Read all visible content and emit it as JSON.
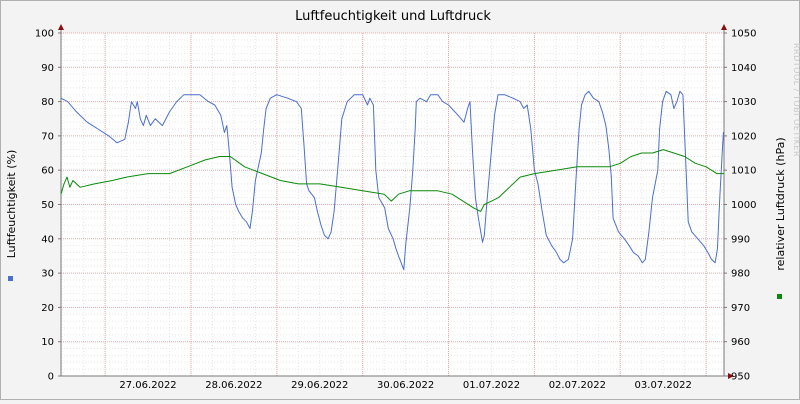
{
  "chart_data": {
    "type": "line",
    "title": "Luftfeuchtigkeit und Luftdruck",
    "watermark": "RRDTOOL / TOBI OETIKER",
    "x_start": "2022-06-26 11:40",
    "x_end": "2022-07-04 05:00",
    "x_tick_labels": [
      {
        "date": "2022-06-27 12:00",
        "label": "27.06.2022"
      },
      {
        "date": "2022-06-28 12:00",
        "label": "28.06.2022"
      },
      {
        "date": "2022-06-29 12:00",
        "label": "29.06.2022"
      },
      {
        "date": "2022-06-30 12:00",
        "label": "30.06.2022"
      },
      {
        "date": "2022-07-01 12:00",
        "label": "01.07.2022"
      },
      {
        "date": "2022-07-02 12:00",
        "label": "02.07.2022"
      },
      {
        "date": "2022-07-03 12:00",
        "label": "03.07.2022"
      }
    ],
    "x_major_gridlines": [
      "2022-06-27 00:00",
      "2022-06-28 00:00",
      "2022-06-29 00:00",
      "2022-06-30 00:00",
      "2022-07-01 00:00",
      "2022-07-02 00:00",
      "2022-07-03 00:00",
      "2022-07-04 00:00"
    ],
    "grid": true,
    "y_left": {
      "label": "Luftfeuchtigkeit (%)",
      "range": [
        0,
        100
      ],
      "ticks": [
        "0",
        "10",
        "20",
        "30",
        "40",
        "50",
        "60",
        "70",
        "80",
        "90",
        "100"
      ]
    },
    "y_right": {
      "label": "relativer Luftdruck (hPa)",
      "range": [
        950,
        1050
      ],
      "ticks": [
        "950",
        "960",
        "970",
        "980",
        "990",
        "1000",
        "1010",
        "1020",
        "1030",
        "1040",
        "1050"
      ]
    },
    "series": [
      {
        "axis": "left",
        "color": "#4a6fd0",
        "points": [
          [
            "2022-06-26 11:40",
            81
          ],
          [
            "2022-06-26 13:30",
            80
          ],
          [
            "2022-06-26 16:00",
            77
          ],
          [
            "2022-06-26 19:00",
            74
          ],
          [
            "2022-06-26 22:00",
            72
          ],
          [
            "2022-06-27 01:00",
            70
          ],
          [
            "2022-06-27 03:20",
            68
          ],
          [
            "2022-06-27 05:30",
            69
          ],
          [
            "2022-06-27 06:30",
            74
          ],
          [
            "2022-06-27 07:20",
            80
          ],
          [
            "2022-06-27 08:30",
            78
          ],
          [
            "2022-06-27 09:00",
            80
          ],
          [
            "2022-06-27 09:50",
            75
          ],
          [
            "2022-06-27 10:40",
            73
          ],
          [
            "2022-06-27 11:30",
            76
          ],
          [
            "2022-06-27 12:40",
            73
          ],
          [
            "2022-06-27 14:00",
            75
          ],
          [
            "2022-06-27 16:00",
            73
          ],
          [
            "2022-06-27 18:00",
            77
          ],
          [
            "2022-06-27 20:00",
            80
          ],
          [
            "2022-06-27 22:00",
            82
          ],
          [
            "2022-06-28 00:00",
            82
          ],
          [
            "2022-06-28 02:30",
            82
          ],
          [
            "2022-06-28 04:50",
            80
          ],
          [
            "2022-06-28 06:40",
            79
          ],
          [
            "2022-06-28 08:20",
            76
          ],
          [
            "2022-06-28 09:20",
            71
          ],
          [
            "2022-06-28 10:00",
            73
          ],
          [
            "2022-06-28 10:40",
            66
          ],
          [
            "2022-06-28 11:30",
            55
          ],
          [
            "2022-06-28 12:30",
            50
          ],
          [
            "2022-06-28 13:20",
            48
          ],
          [
            "2022-06-28 14:30",
            46
          ],
          [
            "2022-06-28 15:30",
            45
          ],
          [
            "2022-06-28 16:30",
            43
          ],
          [
            "2022-06-28 17:10",
            48
          ],
          [
            "2022-06-28 18:00",
            57
          ],
          [
            "2022-06-28 18:50",
            61
          ],
          [
            "2022-06-28 19:40",
            65
          ],
          [
            "2022-06-28 20:20",
            72
          ],
          [
            "2022-06-28 21:00",
            78
          ],
          [
            "2022-06-28 22:10",
            81
          ],
          [
            "2022-06-29 00:00",
            82
          ],
          [
            "2022-06-29 03:00",
            81
          ],
          [
            "2022-06-29 05:30",
            80
          ],
          [
            "2022-06-29 06:50",
            78
          ],
          [
            "2022-06-29 07:40",
            66
          ],
          [
            "2022-06-29 08:20",
            56
          ],
          [
            "2022-06-29 09:00",
            54
          ],
          [
            "2022-06-29 10:30",
            52
          ],
          [
            "2022-06-29 11:20",
            48
          ],
          [
            "2022-06-29 12:20",
            44
          ],
          [
            "2022-06-29 13:20",
            41
          ],
          [
            "2022-06-29 14:20",
            40
          ],
          [
            "2022-06-29 15:10",
            42
          ],
          [
            "2022-06-29 16:00",
            48
          ],
          [
            "2022-06-29 17:10",
            62
          ],
          [
            "2022-06-29 18:10",
            75
          ],
          [
            "2022-06-29 19:40",
            80
          ],
          [
            "2022-06-29 21:40",
            82
          ],
          [
            "2022-06-30 00:00",
            82
          ],
          [
            "2022-06-30 01:20",
            79
          ],
          [
            "2022-06-30 02:00",
            81
          ],
          [
            "2022-06-30 03:00",
            79
          ],
          [
            "2022-06-30 03:40",
            60
          ],
          [
            "2022-06-30 04:30",
            52
          ],
          [
            "2022-06-30 06:10",
            49
          ],
          [
            "2022-06-30 07:10",
            43
          ],
          [
            "2022-06-30 08:30",
            40
          ],
          [
            "2022-06-30 09:20",
            37
          ],
          [
            "2022-06-30 10:00",
            35
          ],
          [
            "2022-06-30 11:30",
            31
          ],
          [
            "2022-06-30 12:00",
            38
          ],
          [
            "2022-06-30 13:10",
            49
          ],
          [
            "2022-06-30 14:00",
            60
          ],
          [
            "2022-06-30 14:40",
            72
          ],
          [
            "2022-06-30 15:00",
            80
          ],
          [
            "2022-06-30 16:00",
            81
          ],
          [
            "2022-06-30 17:50",
            80
          ],
          [
            "2022-06-30 19:00",
            82
          ],
          [
            "2022-06-30 21:00",
            82
          ],
          [
            "2022-06-30 22:20",
            80
          ],
          [
            "2022-07-01 00:00",
            79
          ],
          [
            "2022-07-01 02:40",
            76
          ],
          [
            "2022-07-01 04:20",
            74
          ],
          [
            "2022-07-01 05:20",
            78
          ],
          [
            "2022-07-01 06:00",
            80
          ],
          [
            "2022-07-01 06:40",
            66
          ],
          [
            "2022-07-01 07:30",
            52
          ],
          [
            "2022-07-01 08:20",
            46
          ],
          [
            "2022-07-01 09:30",
            39
          ],
          [
            "2022-07-01 10:00",
            41
          ],
          [
            "2022-07-01 10:40",
            50
          ],
          [
            "2022-07-01 11:40",
            62
          ],
          [
            "2022-07-01 12:50",
            76
          ],
          [
            "2022-07-01 13:50",
            82
          ],
          [
            "2022-07-01 15:40",
            82
          ],
          [
            "2022-07-01 18:00",
            81
          ],
          [
            "2022-07-01 20:00",
            80
          ],
          [
            "2022-07-01 21:00",
            78
          ],
          [
            "2022-07-01 22:00",
            79
          ],
          [
            "2022-07-01 23:00",
            72
          ],
          [
            "2022-07-02 00:00",
            60
          ],
          [
            "2022-07-02 01:00",
            56
          ],
          [
            "2022-07-02 02:10",
            48
          ],
          [
            "2022-07-02 03:20",
            41
          ],
          [
            "2022-07-02 04:50",
            38
          ],
          [
            "2022-07-02 06:10",
            36
          ],
          [
            "2022-07-02 07:10",
            34
          ],
          [
            "2022-07-02 08:10",
            33
          ],
          [
            "2022-07-02 09:30",
            34
          ],
          [
            "2022-07-02 10:40",
            40
          ],
          [
            "2022-07-02 11:40",
            58
          ],
          [
            "2022-07-02 12:30",
            72
          ],
          [
            "2022-07-02 13:10",
            79
          ],
          [
            "2022-07-02 14:10",
            82
          ],
          [
            "2022-07-02 15:10",
            83
          ],
          [
            "2022-07-02 16:30",
            81
          ],
          [
            "2022-07-02 18:00",
            80
          ],
          [
            "2022-07-02 19:00",
            77
          ],
          [
            "2022-07-02 20:00",
            73
          ],
          [
            "2022-07-02 20:50",
            66
          ],
          [
            "2022-07-02 21:30",
            58
          ],
          [
            "2022-07-02 22:00",
            46
          ],
          [
            "2022-07-02 23:30",
            42
          ],
          [
            "2022-07-03 01:10",
            40
          ],
          [
            "2022-07-03 02:30",
            38
          ],
          [
            "2022-07-03 03:40",
            36
          ],
          [
            "2022-07-03 05:00",
            35
          ],
          [
            "2022-07-03 06:10",
            33
          ],
          [
            "2022-07-03 07:00",
            34
          ],
          [
            "2022-07-03 08:00",
            42
          ],
          [
            "2022-07-03 09:00",
            52
          ],
          [
            "2022-07-03 10:30",
            60
          ],
          [
            "2022-07-03 11:00",
            72
          ],
          [
            "2022-07-03 11:50",
            80
          ],
          [
            "2022-07-03 12:50",
            83
          ],
          [
            "2022-07-03 14:10",
            82
          ],
          [
            "2022-07-03 15:00",
            78
          ],
          [
            "2022-07-03 15:50",
            80
          ],
          [
            "2022-07-03 16:40",
            83
          ],
          [
            "2022-07-03 17:30",
            82
          ],
          [
            "2022-07-03 18:30",
            58
          ],
          [
            "2022-07-03 19:00",
            45
          ],
          [
            "2022-07-03 20:00",
            42
          ],
          [
            "2022-07-03 21:40",
            40
          ],
          [
            "2022-07-03 23:20",
            38
          ],
          [
            "2022-07-04 00:30",
            36
          ],
          [
            "2022-07-04 01:30",
            34
          ],
          [
            "2022-07-04 02:30",
            33
          ],
          [
            "2022-07-04 03:10",
            37
          ],
          [
            "2022-07-04 03:50",
            52
          ],
          [
            "2022-07-04 04:30",
            65
          ],
          [
            "2022-07-04 04:50",
            71
          ],
          [
            "2022-07-04 05:00",
            71
          ]
        ]
      },
      {
        "axis": "right",
        "color": "#0a8a0a",
        "points": [
          [
            "2022-06-26 11:40",
            1003
          ],
          [
            "2022-06-26 12:30",
            1006
          ],
          [
            "2022-06-26 13:20",
            1008
          ],
          [
            "2022-06-26 14:10",
            1005
          ],
          [
            "2022-06-26 15:00",
            1007
          ],
          [
            "2022-06-26 17:00",
            1005
          ],
          [
            "2022-06-26 21:00",
            1006
          ],
          [
            "2022-06-27 02:00",
            1007
          ],
          [
            "2022-06-27 06:00",
            1008
          ],
          [
            "2022-06-27 12:00",
            1009
          ],
          [
            "2022-06-27 18:00",
            1009
          ],
          [
            "2022-06-27 23:00",
            1011
          ],
          [
            "2022-06-28 04:00",
            1013
          ],
          [
            "2022-06-28 08:00",
            1014
          ],
          [
            "2022-06-28 11:00",
            1014
          ],
          [
            "2022-06-28 15:00",
            1011
          ],
          [
            "2022-06-28 20:00",
            1009
          ],
          [
            "2022-06-29 01:00",
            1007
          ],
          [
            "2022-06-29 06:00",
            1006
          ],
          [
            "2022-06-29 12:00",
            1006
          ],
          [
            "2022-06-29 18:00",
            1005
          ],
          [
            "2022-06-30 00:00",
            1004
          ],
          [
            "2022-06-30 06:00",
            1003
          ],
          [
            "2022-06-30 08:00",
            1001
          ],
          [
            "2022-06-30 10:00",
            1003
          ],
          [
            "2022-06-30 13:00",
            1004
          ],
          [
            "2022-06-30 17:00",
            1004
          ],
          [
            "2022-06-30 21:00",
            1004
          ],
          [
            "2022-07-01 01:00",
            1003
          ],
          [
            "2022-07-01 04:00",
            1001
          ],
          [
            "2022-07-01 07:00",
            999
          ],
          [
            "2022-07-01 09:00",
            998
          ],
          [
            "2022-07-01 10:00",
            1000
          ],
          [
            "2022-07-01 12:00",
            1001
          ],
          [
            "2022-07-01 14:00",
            1002
          ],
          [
            "2022-07-01 17:00",
            1005
          ],
          [
            "2022-07-01 20:00",
            1008
          ],
          [
            "2022-07-02 00:00",
            1009
          ],
          [
            "2022-07-02 06:00",
            1010
          ],
          [
            "2022-07-02 12:00",
            1011
          ],
          [
            "2022-07-02 15:00",
            1011
          ],
          [
            "2022-07-02 18:00",
            1011
          ],
          [
            "2022-07-02 21:00",
            1011
          ],
          [
            "2022-07-03 00:00",
            1012
          ],
          [
            "2022-07-03 03:00",
            1014
          ],
          [
            "2022-07-03 06:00",
            1015
          ],
          [
            "2022-07-03 09:00",
            1015
          ],
          [
            "2022-07-03 12:00",
            1016
          ],
          [
            "2022-07-03 15:00",
            1015
          ],
          [
            "2022-07-03 18:00",
            1014
          ],
          [
            "2022-07-03 21:00",
            1012
          ],
          [
            "2022-07-04 00:00",
            1011
          ],
          [
            "2022-07-04 03:00",
            1009
          ],
          [
            "2022-07-04 05:00",
            1009
          ]
        ]
      }
    ]
  }
}
